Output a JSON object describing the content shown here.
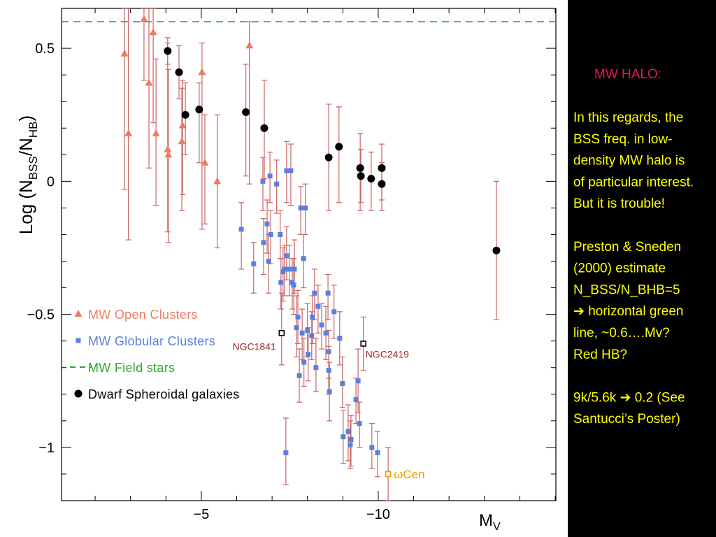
{
  "chart_data": {
    "type": "scatter",
    "xlabel_parts": [
      "M",
      "V"
    ],
    "ylabel_parts": [
      "Log  (N",
      "BSS",
      "/N",
      "HB",
      ")"
    ],
    "xlim": [
      -1.05,
      -15.02
    ],
    "ylim": [
      -1.2,
      0.65
    ],
    "xticks": [
      {
        "value": -5,
        "label": "−5"
      },
      {
        "value": -10,
        "label": "−10"
      }
    ],
    "yticks": [
      {
        "value": -1,
        "label": "−1"
      },
      {
        "value": -0.5,
        "label": "−0.5"
      },
      0,
      0.5
    ],
    "xminorticks": [
      -2,
      -3,
      -4,
      -6,
      -7,
      -8,
      -9,
      -11,
      -12,
      -13,
      -14,
      -15
    ],
    "yminorticks": [
      -1.1,
      -0.9,
      -0.8,
      -0.7,
      -0.6,
      -0.4,
      -0.3,
      -0.2,
      -0.1,
      0.1,
      0.2,
      0.3,
      0.4,
      0.6
    ],
    "errorbar_color": "#c86464",
    "legend": "center left",
    "series": [
      {
        "name": "MW Open Clusters",
        "color": "#f07b65",
        "marker": "triangle",
        "x": [
          -2.83,
          -2.94,
          -3.38,
          -3.52,
          -3.64,
          -3.72,
          -4.05,
          -4.07,
          -4.47,
          -4.45,
          -5.02,
          -5.1,
          -5.45,
          -6.36
        ],
        "values": [
          0.48,
          0.18,
          0.61,
          0.37,
          0.56,
          0.18,
          0.12,
          0.1,
          0.21,
          0.15,
          0.41,
          0.07,
          0.0,
          0.51
        ],
        "yerr_plus": [
          0.17,
          0.47,
          0.04,
          0.28,
          0.09,
          0.28,
          0.4,
          0.32,
          0.17,
          0.2,
          0.11,
          0.18,
          0.25,
          0.09
        ],
        "yerr_minus": [
          0.51,
          0.4,
          0.23,
          0.32,
          0.34,
          0.27,
          0.31,
          0.33,
          0.26,
          0.26,
          0.59,
          0.23,
          0.25,
          0.52
        ]
      },
      {
        "name": "MW Globular Clusters",
        "color": "#5b7fe0",
        "marker": "square",
        "x": [
          -6.13,
          -6.48,
          -6.74,
          -6.76,
          -6.86,
          -6.9,
          -6.94,
          -6.96,
          -7.13,
          -7.23,
          -7.25,
          -7.31,
          -7.35,
          -7.41,
          -7.41,
          -7.49,
          -7.53,
          -7.57,
          -7.61,
          -7.63,
          -7.69,
          -7.73,
          -7.77,
          -7.81,
          -7.85,
          -7.89,
          -7.9,
          -7.94,
          -8.0,
          -8.02,
          -8.12,
          -8.14,
          -8.2,
          -8.24,
          -8.3,
          -8.4,
          -8.52,
          -8.58,
          -8.6,
          -8.6,
          -8.62,
          -8.75,
          -8.91,
          -8.99,
          -9.01,
          -9.15,
          -9.21,
          -9.23,
          -9.37,
          -9.43,
          -9.47,
          -9.82,
          -9.98,
          -7.39
        ],
        "values": [
          -0.18,
          -0.31,
          0.0,
          -0.23,
          -0.16,
          -0.3,
          0.02,
          -0.2,
          -0.01,
          -0.2,
          -0.38,
          -0.34,
          -0.33,
          0.04,
          -0.28,
          -0.33,
          0.04,
          -0.38,
          -0.39,
          -0.33,
          -0.55,
          -0.51,
          -0.73,
          -0.1,
          -0.57,
          -0.29,
          -0.68,
          -0.1,
          -0.56,
          -0.65,
          -0.58,
          -0.51,
          -0.42,
          -0.7,
          -0.47,
          -0.54,
          -0.57,
          -0.42,
          -0.64,
          -0.71,
          -0.79,
          -0.49,
          -0.59,
          -0.76,
          -0.96,
          -0.94,
          -0.99,
          -0.97,
          -0.82,
          -0.75,
          -0.91,
          -1.0,
          -1.02,
          -1.02
        ],
        "yerr_plus": [
          0.1,
          0.08,
          0.09,
          0.09,
          0.09,
          0.1,
          0.09,
          0.09,
          0.09,
          0.09,
          0.09,
          0.09,
          0.09,
          0.11,
          0.11,
          0.09,
          0.1,
          0.09,
          0.1,
          0.11,
          0.12,
          0.1,
          0.1,
          0.08,
          0.09,
          0.09,
          0.09,
          0.09,
          0.1,
          0.1,
          0.09,
          0.08,
          0.09,
          0.11,
          0.08,
          0.08,
          0.1,
          0.07,
          0.08,
          0.09,
          0.11,
          0.1,
          0.1,
          0.1,
          0.1,
          0.1,
          0.09,
          0.09,
          0.08,
          0.12,
          0.08,
          0.09,
          0.08,
          0.13
        ],
        "yerr_minus": [
          0.15,
          0.11,
          0.11,
          0.12,
          0.11,
          0.12,
          0.1,
          0.11,
          0.11,
          0.09,
          0.1,
          0.11,
          0.1,
          0.12,
          0.09,
          0.1,
          0.13,
          0.1,
          0.11,
          0.09,
          0.11,
          0.1,
          0.1,
          0.1,
          0.1,
          0.11,
          0.09,
          0.1,
          0.1,
          0.1,
          0.09,
          0.1,
          0.1,
          0.09,
          0.1,
          0.09,
          0.1,
          0.1,
          0.1,
          0.09,
          0.11,
          0.1,
          0.1,
          0.09,
          0.1,
          0.11,
          0.09,
          0.1,
          0.09,
          0.12,
          0.09,
          0.08,
          0.09,
          0.12
        ]
      },
      {
        "name": "MW Field stars",
        "color": "#2ea82e",
        "marker": "dashed-line",
        "hline": 0.6
      },
      {
        "name": "Dwarf Spheroidal galaxies",
        "color": "#000000",
        "marker": "circle",
        "x": [
          -4.05,
          -4.37,
          -4.55,
          -4.94,
          -6.26,
          -6.78,
          -8.6,
          -8.89,
          -9.49,
          -9.51,
          -9.8,
          -10.1,
          -10.1,
          -13.34
        ],
        "values": [
          0.49,
          0.41,
          0.25,
          0.27,
          0.26,
          0.2,
          0.09,
          0.13,
          0.05,
          0.02,
          0.01,
          0.05,
          -0.01,
          -0.26
        ],
        "yerr_plus": [
          0.05,
          0.1,
          0.12,
          0.1,
          0.18,
          0.18,
          0.2,
          0.15,
          0.13,
          0.1,
          0.1,
          0.09,
          0.08,
          0.26
        ],
        "yerr_minus": [
          0.05,
          0.1,
          0.15,
          0.2,
          0.24,
          0.19,
          0.2,
          0.21,
          0.16,
          0.1,
          0.12,
          0.12,
          0.1,
          0.26
        ]
      }
    ],
    "annotations": [
      {
        "text": "NGC1841",
        "x": -7.27,
        "y": -0.57,
        "yerr_plus": 0.15,
        "yerr_minus": 0.12,
        "color": "#a02828",
        "marker_color": "#000000"
      },
      {
        "text": "NGC2419",
        "x": -9.58,
        "y": -0.61,
        "yerr_plus": 0.1,
        "yerr_minus": 0.1,
        "color": "#a02828",
        "marker_color": "#000000"
      },
      {
        "text": "ωCen",
        "x": -10.28,
        "y": -1.1,
        "yerr_plus": 0.1,
        "yerr_minus": 0.1,
        "color": "#e8a000",
        "marker_color": "#e8a000"
      }
    ]
  },
  "sidebar": {
    "heading": "MW HALO:",
    "paragraphs": [
      [
        "In this regards, the",
        "BSS freq. in low-",
        "density MW halo is",
        "of particular interest.",
        "But it is trouble!"
      ],
      [
        "Preston & Sneden",
        "(2000) estimate",
        "N_BSS/N_BHB=5",
        "➔ horizontal green",
        "line, ~0.6….Mv?",
        "Red HB?"
      ],
      [
        "9k/5.6k ➔ 0.2 (See",
        "Santucci’s Poster)"
      ]
    ]
  }
}
